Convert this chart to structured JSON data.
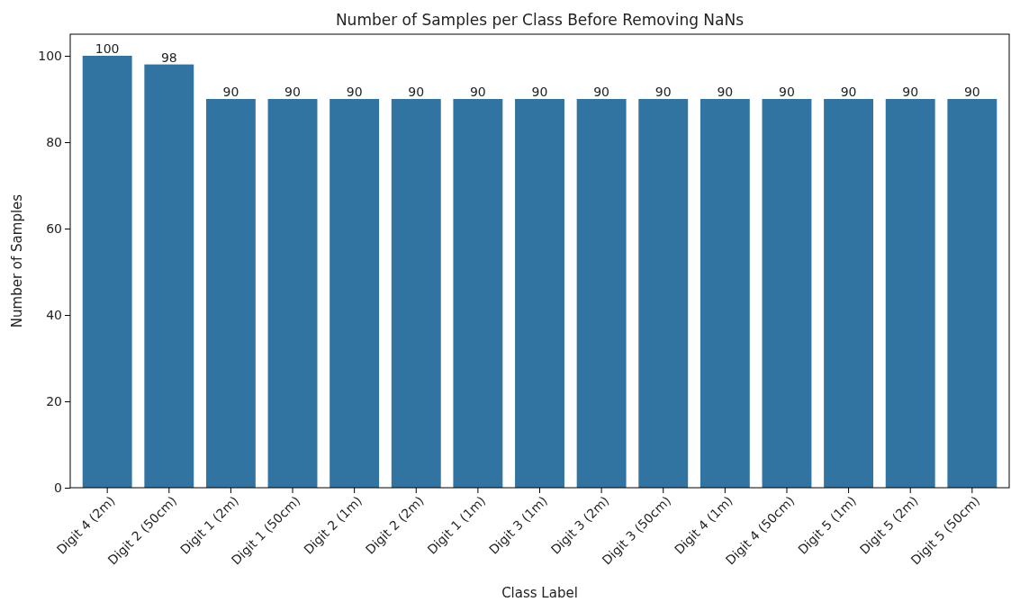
{
  "chart_data": {
    "type": "bar",
    "title": "Number of Samples per Class Before Removing NaNs",
    "xlabel": "Class Label",
    "ylabel": "Number of Samples",
    "categories": [
      "Digit 4 (2m)",
      "Digit 2 (50cm)",
      "Digit 1 (2m)",
      "Digit 1 (50cm)",
      "Digit 2 (1m)",
      "Digit 2 (2m)",
      "Digit 1 (1m)",
      "Digit 3 (1m)",
      "Digit 3 (2m)",
      "Digit 3 (50cm)",
      "Digit 4 (1m)",
      "Digit 4 (50cm)",
      "Digit 5 (1m)",
      "Digit 5 (2m)",
      "Digit 5 (50cm)"
    ],
    "values": [
      100,
      98,
      90,
      90,
      90,
      90,
      90,
      90,
      90,
      90,
      90,
      90,
      90,
      90,
      90
    ],
    "color": "#3274a1",
    "ylim": [
      0,
      105
    ],
    "yticks": [
      0,
      20,
      40,
      60,
      80,
      100
    ],
    "data_labels": true
  }
}
